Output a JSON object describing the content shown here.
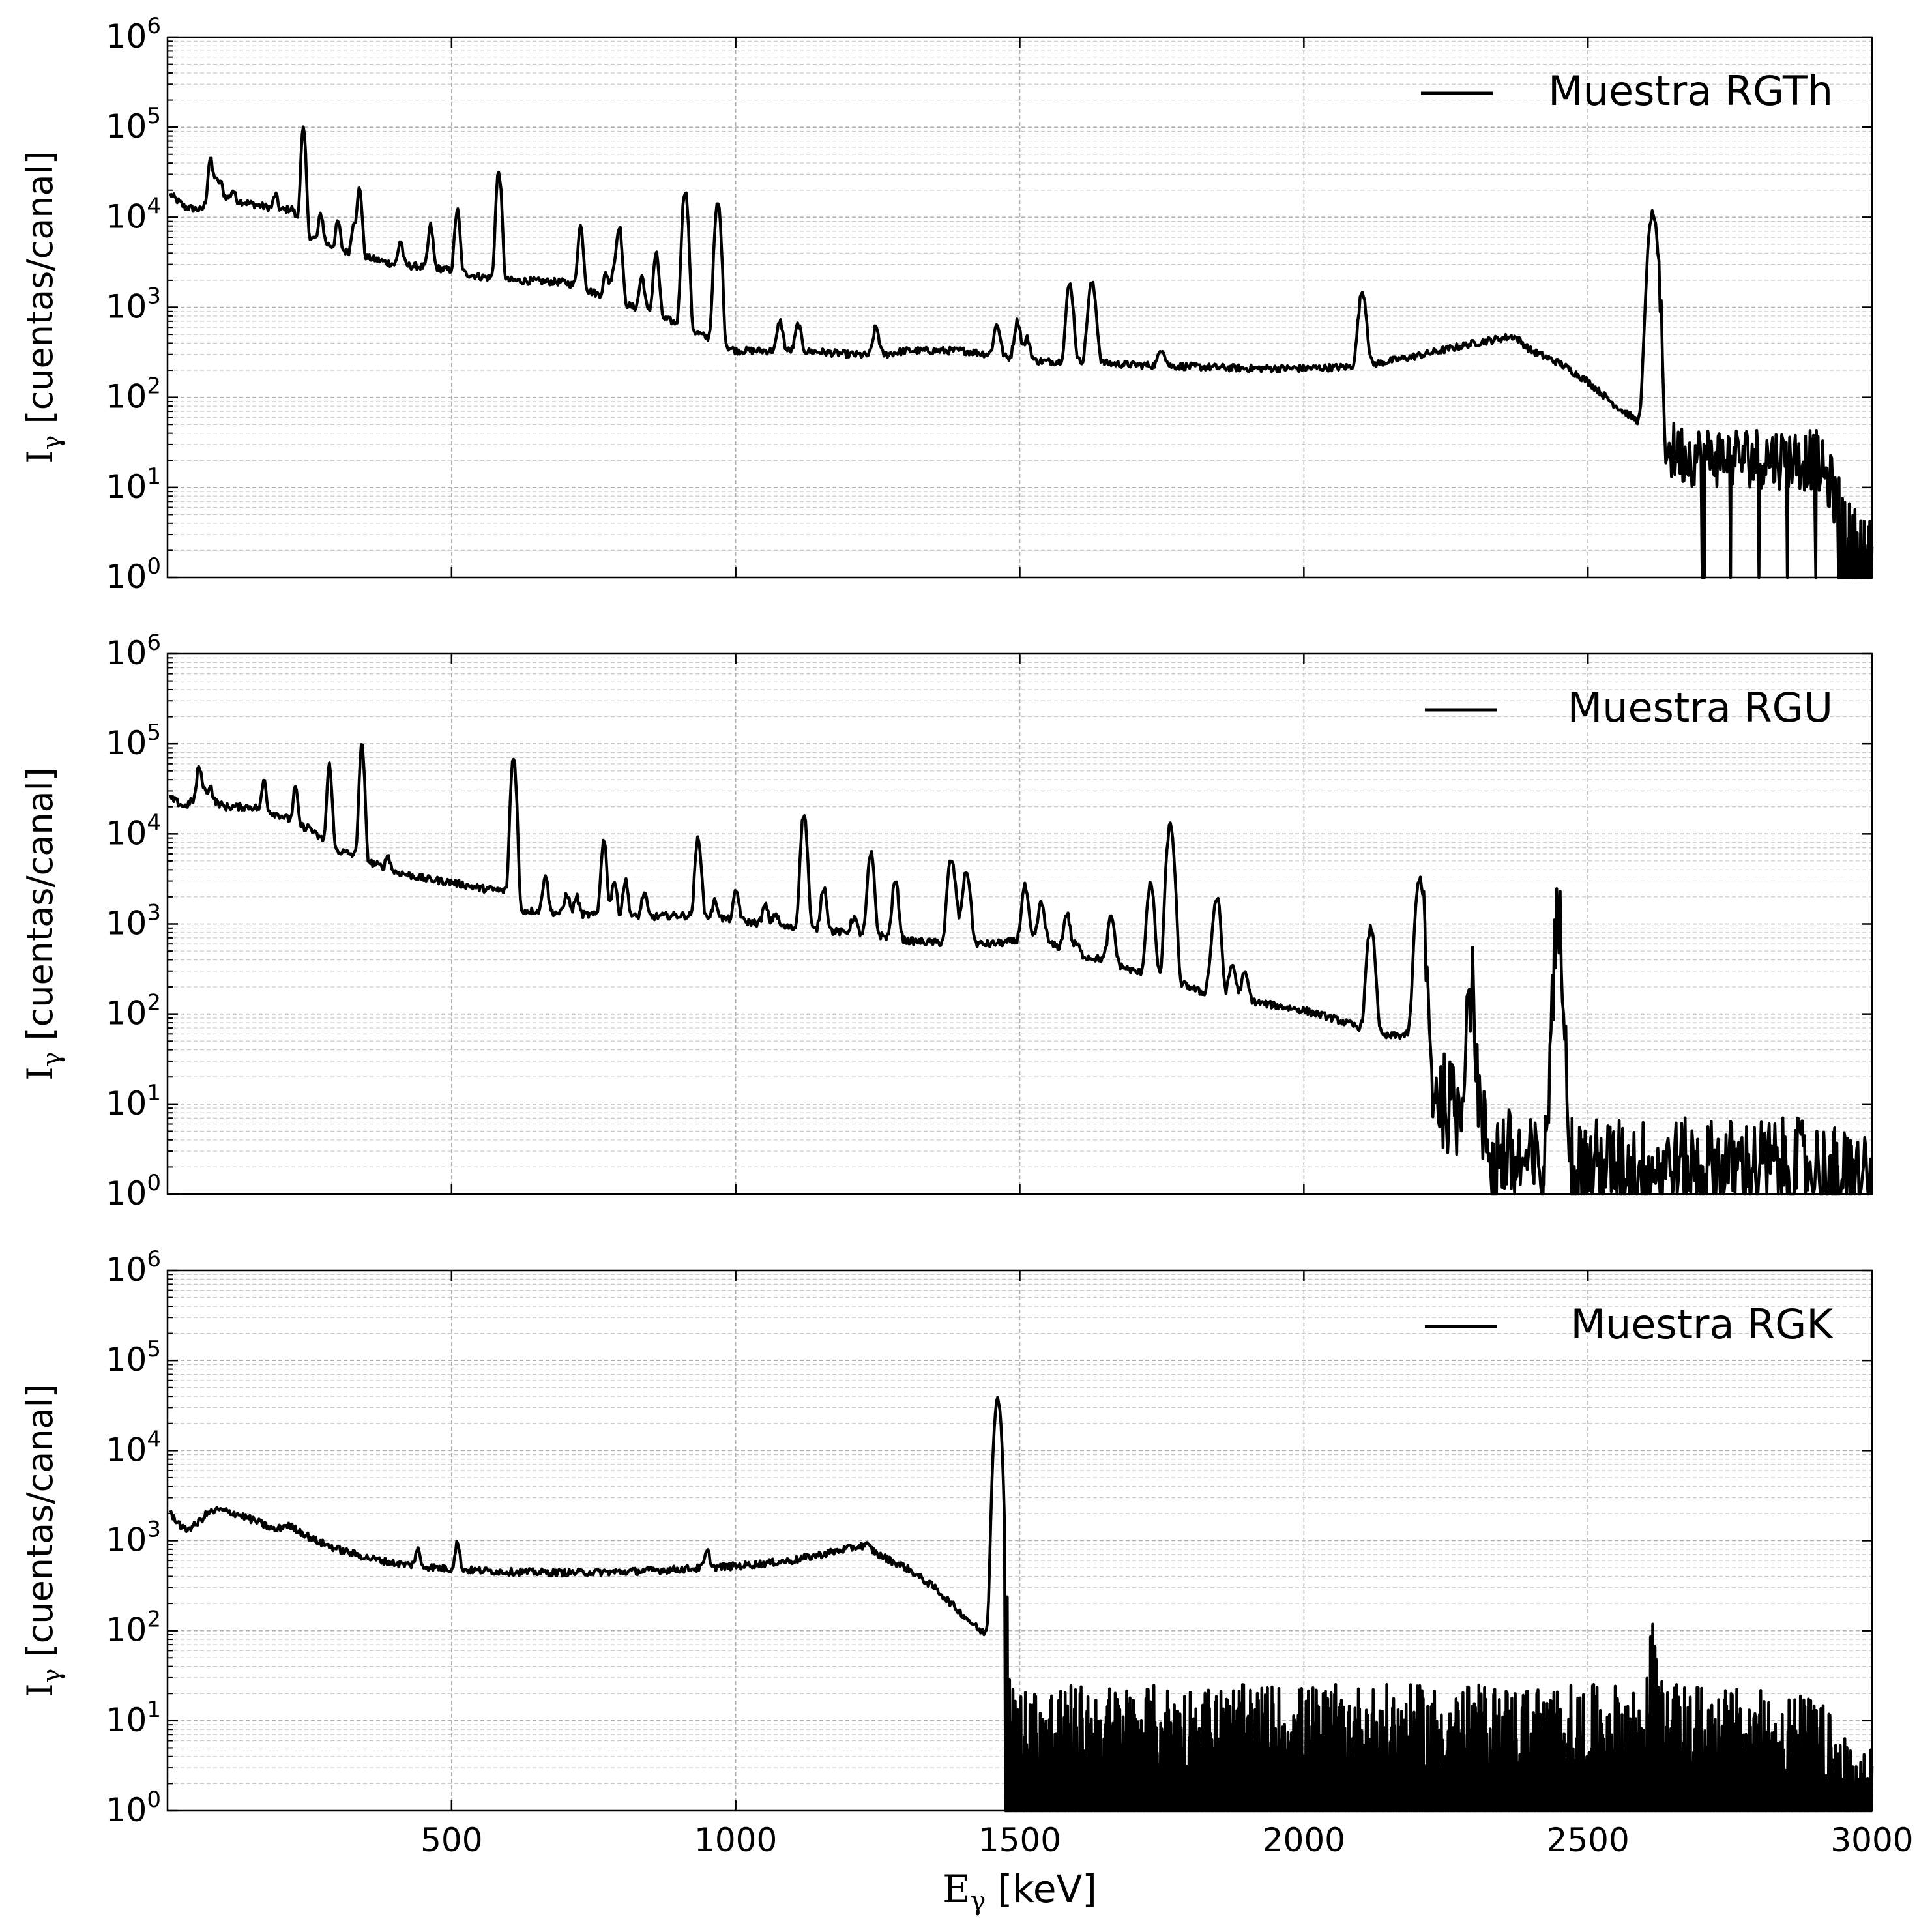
{
  "chart_data": [
    {
      "type": "line",
      "legend": "Muestra RGTh",
      "legend_position": "top-right",
      "ylabel_main": "I",
      "ylabel_sub": "γ",
      "ylabel_rest": " [cuentas/canal]",
      "xlabel_main": "",
      "xlabel_sub": "",
      "xlabel_rest": "",
      "xlim": [
        0,
        3000
      ],
      "ylim": [
        1,
        1000000
      ],
      "yscale": "log",
      "grid": true,
      "x_ticks": [],
      "y_ticks": [
        "10^0",
        "10^1",
        "10^2",
        "10^3",
        "10^4",
        "10^5",
        "10^6"
      ],
      "y_tick_base": "10",
      "y_tick_exps": [
        "0",
        "1",
        "2",
        "3",
        "4",
        "5",
        "6"
      ],
      "continuum": [
        [
          5,
          18000
        ],
        [
          30,
          13000
        ],
        [
          60,
          12000
        ],
        [
          80,
          20000
        ],
        [
          110,
          16000
        ],
        [
          150,
          14000
        ],
        [
          200,
          12000
        ],
        [
          220,
          12500
        ],
        [
          230,
          9000
        ],
        [
          240,
          6500
        ],
        [
          300,
          4500
        ],
        [
          330,
          3800
        ],
        [
          350,
          3600
        ],
        [
          400,
          3000
        ],
        [
          480,
          2700
        ],
        [
          550,
          2200
        ],
        [
          600,
          2000
        ],
        [
          700,
          1900
        ],
        [
          720,
          1700
        ],
        [
          780,
          1250
        ],
        [
          900,
          650
        ],
        [
          970,
          400
        ],
        [
          1000,
          330
        ],
        [
          1100,
          330
        ],
        [
          1150,
          320
        ],
        [
          1200,
          300
        ],
        [
          1250,
          290
        ],
        [
          1300,
          330
        ],
        [
          1400,
          330
        ],
        [
          1450,
          300
        ],
        [
          1500,
          260
        ],
        [
          1550,
          250
        ],
        [
          1600,
          250
        ],
        [
          1700,
          230
        ],
        [
          1800,
          220
        ],
        [
          1900,
          210
        ],
        [
          2000,
          210
        ],
        [
          2100,
          220
        ],
        [
          2200,
          290
        ],
        [
          2300,
          400
        ],
        [
          2370,
          480
        ],
        [
          2400,
          330
        ],
        [
          2450,
          240
        ],
        [
          2500,
          150
        ],
        [
          2550,
          80
        ],
        [
          2600,
          48
        ],
        [
          2615,
          45
        ],
        [
          2625,
          26
        ],
        [
          2700,
          22
        ],
        [
          2800,
          22
        ],
        [
          2900,
          20
        ],
        [
          2930,
          10
        ],
        [
          2960,
          3
        ],
        [
          3000,
          2
        ]
      ],
      "peaks": [
        [
          75,
          45000
        ],
        [
          84,
          28000
        ],
        [
          93,
          25000
        ],
        [
          115,
          20000
        ],
        [
          190,
          18000
        ],
        [
          239,
          95000
        ],
        [
          270,
          11000
        ],
        [
          300,
          9000
        ],
        [
          328,
          9000
        ],
        [
          338,
          21000
        ],
        [
          410,
          5500
        ],
        [
          463,
          8000
        ],
        [
          510,
          12000
        ],
        [
          583,
          32000
        ],
        [
          727,
          8000
        ],
        [
          772,
          2400
        ],
        [
          785,
          2600
        ],
        [
          795,
          8000
        ],
        [
          835,
          2200
        ],
        [
          860,
          4000
        ],
        [
          911,
          20000
        ],
        [
          965,
          2300
        ],
        [
          969,
          13000
        ],
        [
          1078,
          700
        ],
        [
          1110,
          650
        ],
        [
          1247,
          600
        ],
        [
          1460,
          650
        ],
        [
          1496,
          700
        ],
        [
          1513,
          450
        ],
        [
          1588,
          1800
        ],
        [
          1625,
          1300
        ],
        [
          1630,
          1000
        ],
        [
          1750,
          350
        ],
        [
          2103,
          1500
        ],
        [
          2614,
          11000
        ]
      ],
      "noise_start": 2625,
      "noise_amp": 0.35,
      "dropouts": [
        [
          2700,
          2705
        ],
        [
          2750,
          2752
        ],
        [
          2800,
          2802
        ],
        [
          2850,
          2852
        ],
        [
          2900,
          2902
        ],
        [
          2940,
          3000
        ]
      ]
    },
    {
      "type": "line",
      "legend": "Muestra RGU",
      "legend_position": "top-right",
      "ylabel_main": "I",
      "ylabel_sub": "γ",
      "ylabel_rest": " [cuentas/canal]",
      "xlabel_main": "",
      "xlabel_sub": "",
      "xlabel_rest": "",
      "xlim": [
        0,
        3000
      ],
      "ylim": [
        1,
        1000000
      ],
      "yscale": "log",
      "grid": true,
      "x_ticks": [],
      "y_ticks": [
        "10^0",
        "10^1",
        "10^2",
        "10^3",
        "10^4",
        "10^5",
        "10^6"
      ],
      "y_tick_base": "10",
      "y_tick_exps": [
        "0",
        "1",
        "2",
        "3",
        "4",
        "5",
        "6"
      ],
      "continuum": [
        [
          5,
          25000
        ],
        [
          30,
          20000
        ],
        [
          60,
          28000
        ],
        [
          100,
          20000
        ],
        [
          150,
          20000
        ],
        [
          200,
          16000
        ],
        [
          250,
          11000
        ],
        [
          300,
          6500
        ],
        [
          330,
          5800
        ],
        [
          350,
          5000
        ],
        [
          400,
          3800
        ],
        [
          450,
          3200
        ],
        [
          500,
          2900
        ],
        [
          550,
          2500
        ],
        [
          600,
          2300
        ],
        [
          620,
          1400
        ],
        [
          650,
          1400
        ],
        [
          700,
          1300
        ],
        [
          750,
          1250
        ],
        [
          800,
          1200
        ],
        [
          850,
          1200
        ],
        [
          900,
          1250
        ],
        [
          950,
          1200
        ],
        [
          1000,
          1100
        ],
        [
          1050,
          1000
        ],
        [
          1100,
          900
        ],
        [
          1150,
          850
        ],
        [
          1200,
          800
        ],
        [
          1250,
          750
        ],
        [
          1300,
          650
        ],
        [
          1400,
          600
        ],
        [
          1450,
          600
        ],
        [
          1500,
          650
        ],
        [
          1530,
          700
        ],
        [
          1600,
          450
        ],
        [
          1650,
          400
        ],
        [
          1700,
          300
        ],
        [
          1750,
          250
        ],
        [
          1800,
          200
        ],
        [
          1840,
          150
        ],
        [
          1900,
          140
        ],
        [
          2000,
          110
        ],
        [
          2050,
          90
        ],
        [
          2100,
          70
        ],
        [
          2120,
          55
        ],
        [
          2200,
          60
        ],
        [
          2210,
          25
        ],
        [
          2250,
          10
        ],
        [
          2300,
          6
        ],
        [
          2340,
          3
        ],
        [
          2400,
          2
        ],
        [
          2500,
          2
        ],
        [
          2600,
          2
        ],
        [
          2700,
          2
        ],
        [
          2800,
          2
        ],
        [
          2900,
          2
        ],
        [
          2950,
          1.5
        ],
        [
          3000,
          1.5
        ]
      ],
      "peaks": [
        [
          55,
          55000
        ],
        [
          62,
          35000
        ],
        [
          75,
          35000
        ],
        [
          170,
          40000
        ],
        [
          225,
          33000
        ],
        [
          250,
          12000
        ],
        [
          285,
          58000
        ],
        [
          342,
          95000
        ],
        [
          388,
          5800
        ],
        [
          609,
          72000
        ],
        [
          665,
          3600
        ],
        [
          703,
          2200
        ],
        [
          720,
          2000
        ],
        [
          768,
          8500
        ],
        [
          786,
          3000
        ],
        [
          806,
          3000
        ],
        [
          839,
          2200
        ],
        [
          934,
          9000
        ],
        [
          964,
          1800
        ],
        [
          1001,
          2300
        ],
        [
          1052,
          1600
        ],
        [
          1070,
          1300
        ],
        [
          1120,
          16500
        ],
        [
          1155,
          2600
        ],
        [
          1208,
          1200
        ],
        [
          1238,
          6000
        ],
        [
          1281,
          3000
        ],
        [
          1378,
          4500
        ],
        [
          1385,
          2200
        ],
        [
          1402,
          2000
        ],
        [
          1408,
          3000
        ],
        [
          1509,
          2600
        ],
        [
          1538,
          1700
        ],
        [
          1583,
          1300
        ],
        [
          1600,
          600
        ],
        [
          1661,
          1200
        ],
        [
          1730,
          2800
        ],
        [
          1765,
          12500
        ],
        [
          1838,
          350
        ],
        [
          1847,
          1900
        ],
        [
          1874,
          350
        ],
        [
          1896,
          280
        ],
        [
          2118,
          900
        ],
        [
          2204,
          3200
        ],
        [
          2293,
          210
        ],
        [
          2448,
          900
        ]
      ],
      "noise_start": 2210,
      "noise_amp": 0.55,
      "dropouts": [
        [
          2330,
          2340
        ],
        [
          2370,
          2372
        ],
        [
          2420,
          2422
        ],
        [
          2470,
          2475
        ],
        [
          2600,
          2605
        ],
        [
          2700,
          2702
        ],
        [
          2850,
          2852
        ],
        [
          2930,
          2940
        ],
        [
          2960,
          2965
        ]
      ]
    },
    {
      "type": "line",
      "legend": "Muestra RGK",
      "legend_position": "top-right",
      "ylabel_main": "I",
      "ylabel_sub": "γ",
      "ylabel_rest": " [cuentas/canal]",
      "xlabel_main": "E",
      "xlabel_sub": "γ",
      "xlabel_rest": " [keV]",
      "xlim": [
        0,
        3000
      ],
      "ylim": [
        1,
        1000000
      ],
      "yscale": "log",
      "grid": true,
      "x_ticks": [
        "500",
        "1000",
        "1500",
        "2000",
        "2500",
        "3000"
      ],
      "y_ticks": [
        "10^0",
        "10^1",
        "10^2",
        "10^3",
        "10^4",
        "10^5",
        "10^6"
      ],
      "y_tick_base": "10",
      "y_tick_exps": [
        "0",
        "1",
        "2",
        "3",
        "4",
        "5",
        "6"
      ],
      "continuum": [
        [
          5,
          2000
        ],
        [
          15,
          1700
        ],
        [
          30,
          1300
        ],
        [
          50,
          1500
        ],
        [
          70,
          2000
        ],
        [
          90,
          2200
        ],
        [
          120,
          2000
        ],
        [
          160,
          1600
        ],
        [
          190,
          1300
        ],
        [
          210,
          1500
        ],
        [
          230,
          1300
        ],
        [
          260,
          1000
        ],
        [
          300,
          800
        ],
        [
          350,
          650
        ],
        [
          400,
          560
        ],
        [
          500,
          480
        ],
        [
          600,
          450
        ],
        [
          700,
          440
        ],
        [
          800,
          450
        ],
        [
          900,
          480
        ],
        [
          1000,
          520
        ],
        [
          1100,
          600
        ],
        [
          1150,
          700
        ],
        [
          1200,
          820
        ],
        [
          1230,
          900
        ],
        [
          1250,
          700
        ],
        [
          1300,
          500
        ],
        [
          1350,
          300
        ],
        [
          1400,
          150
        ],
        [
          1430,
          100
        ],
        [
          1450,
          90
        ],
        [
          1459,
          100
        ],
        [
          1475,
          8
        ],
        [
          1500,
          8
        ],
        [
          1600,
          8
        ],
        [
          1700,
          8
        ],
        [
          1800,
          8
        ],
        [
          1900,
          8
        ],
        [
          2000,
          8
        ],
        [
          2100,
          8
        ],
        [
          2200,
          8
        ],
        [
          2300,
          8
        ],
        [
          2400,
          8
        ],
        [
          2500,
          8
        ],
        [
          2600,
          8
        ],
        [
          2700,
          8
        ],
        [
          2800,
          7
        ],
        [
          2900,
          6
        ],
        [
          2940,
          3
        ],
        [
          3000,
          1.5
        ]
      ],
      "peaks": [
        [
          440,
          800
        ],
        [
          510,
          950
        ],
        [
          950,
          750
        ],
        [
          1461,
          40000
        ],
        [
          2614,
          40
        ]
      ],
      "noise_start": 1475,
      "noise_amp": 0.5,
      "dropouts": [
        [
          1475,
          3000
        ]
      ]
    }
  ]
}
